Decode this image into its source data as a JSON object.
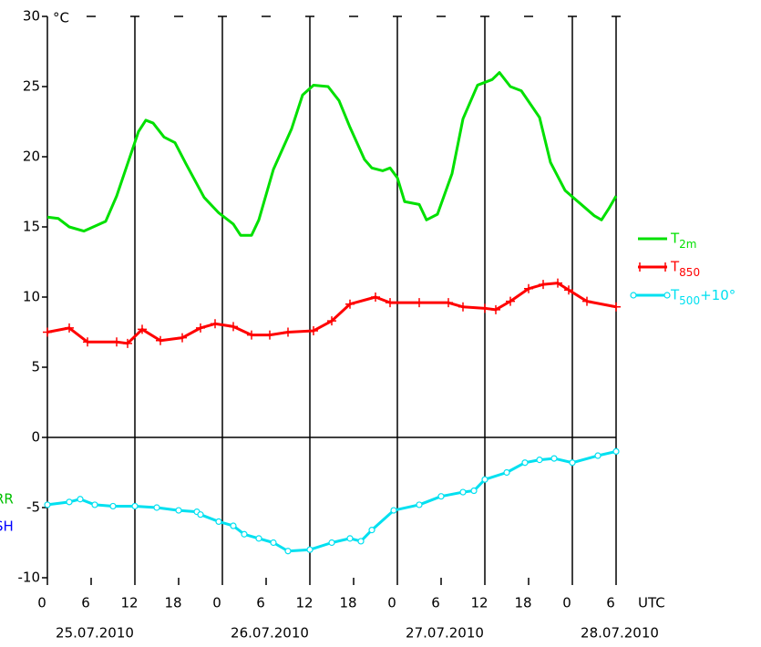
{
  "chart_data": {
    "type": "line",
    "y_unit": "°C",
    "x_unit": "UTC",
    "dates": [
      "25.07.2010",
      "26.07.2010",
      "27.07.2010",
      "28.07.2010"
    ],
    "annotations": [
      {
        "text": "RR",
        "color": "#00c000"
      },
      {
        "text": "SH",
        "color": "#0000ff"
      }
    ],
    "xlim": [
      0,
      78
    ],
    "xticks": [
      0,
      6,
      12,
      18,
      {
        "value": 24,
        "label": "0"
      },
      {
        "value": 30,
        "label": "6"
      },
      {
        "value": 36,
        "label": "12"
      },
      {
        "value": 42,
        "label": "18"
      },
      {
        "value": 48,
        "label": "0"
      },
      {
        "value": 54,
        "label": "6"
      },
      {
        "value": 60,
        "label": "12"
      },
      {
        "value": 66,
        "label": "18"
      },
      {
        "value": 72,
        "label": "0"
      },
      {
        "value": 78,
        "label": "6"
      }
    ],
    "ylim": [
      -10,
      30
    ],
    "yticks": [
      -10,
      -5,
      0,
      5,
      10,
      15,
      20,
      25,
      30
    ],
    "series": [
      {
        "name": "T2m",
        "color": "#00e000",
        "marker": "none",
        "x": [
          0,
          1.5,
          3,
          5,
          8,
          9.5,
          11,
          12.5,
          13.5,
          14.5,
          16,
          17.5,
          19,
          21.5,
          23.5,
          25.5,
          26.5,
          28,
          29,
          31,
          33.5,
          35,
          36.5,
          38.5,
          40,
          41.5,
          43.5,
          44.5,
          46,
          47,
          48,
          49,
          51,
          52,
          53.5,
          55.5,
          57,
          59,
          61,
          62,
          63.5,
          65,
          67.5,
          69,
          71,
          73,
          75,
          76,
          77,
          78
        ],
        "values": [
          15.7,
          15.6,
          15.0,
          14.7,
          15.4,
          17.2,
          19.5,
          21.8,
          22.6,
          22.4,
          21.4,
          21.0,
          19.5,
          17.1,
          16.0,
          15.2,
          14.4,
          14.4,
          15.5,
          19.1,
          22.0,
          24.4,
          25.1,
          25.0,
          24.0,
          22.1,
          19.8,
          19.2,
          19.0,
          19.2,
          18.5,
          16.8,
          16.6,
          15.5,
          15.9,
          18.8,
          22.7,
          25.1,
          25.5,
          26.0,
          25.0,
          24.7,
          22.8,
          19.6,
          17.6,
          16.7,
          15.8,
          15.5,
          16.3,
          17.2
        ]
      },
      {
        "name": "T850",
        "color": "#ff0000",
        "marker": "plus",
        "x": [
          0,
          3,
          5.5,
          9.5,
          11,
          13,
          15.5,
          18.5,
          21,
          23,
          25.5,
          28,
          30.5,
          33,
          36.5,
          39,
          41.5,
          45,
          47,
          51,
          55,
          57,
          60,
          61.5,
          63.5,
          66,
          68,
          70,
          71.5,
          74,
          78
        ],
        "values": [
          7.5,
          7.8,
          6.8,
          6.8,
          6.7,
          7.7,
          6.9,
          7.1,
          7.8,
          8.1,
          7.9,
          7.3,
          7.3,
          7.5,
          7.6,
          8.3,
          9.5,
          10.0,
          9.6,
          9.6,
          9.6,
          9.3,
          9.2,
          9.1,
          9.7,
          10.6,
          10.9,
          11.0,
          10.5,
          9.7,
          9.3
        ]
      },
      {
        "name": "T500+10°",
        "color": "#00e0f0",
        "marker": "circle",
        "x": [
          0,
          3,
          4.5,
          6.5,
          9,
          12,
          15,
          18,
          20.5,
          21,
          23.5,
          25.5,
          27,
          29,
          31,
          33,
          36,
          39,
          41.5,
          43,
          44.5,
          47.5,
          51,
          54,
          57,
          58.5,
          60,
          63,
          65.5,
          67.5,
          69.5,
          72,
          75.5,
          78
        ],
        "values": [
          -4.8,
          -4.6,
          -4.4,
          -4.8,
          -4.9,
          -4.9,
          -5.0,
          -5.2,
          -5.3,
          -5.5,
          -6.0,
          -6.3,
          -6.9,
          -7.2,
          -7.5,
          -8.1,
          -8.0,
          -7.5,
          -7.2,
          -7.4,
          -6.6,
          -5.2,
          -4.8,
          -4.2,
          -3.9,
          -3.8,
          -3.0,
          -2.5,
          -1.8,
          -1.6,
          -1.5,
          -1.8,
          -1.3,
          -1.0
        ]
      }
    ]
  }
}
